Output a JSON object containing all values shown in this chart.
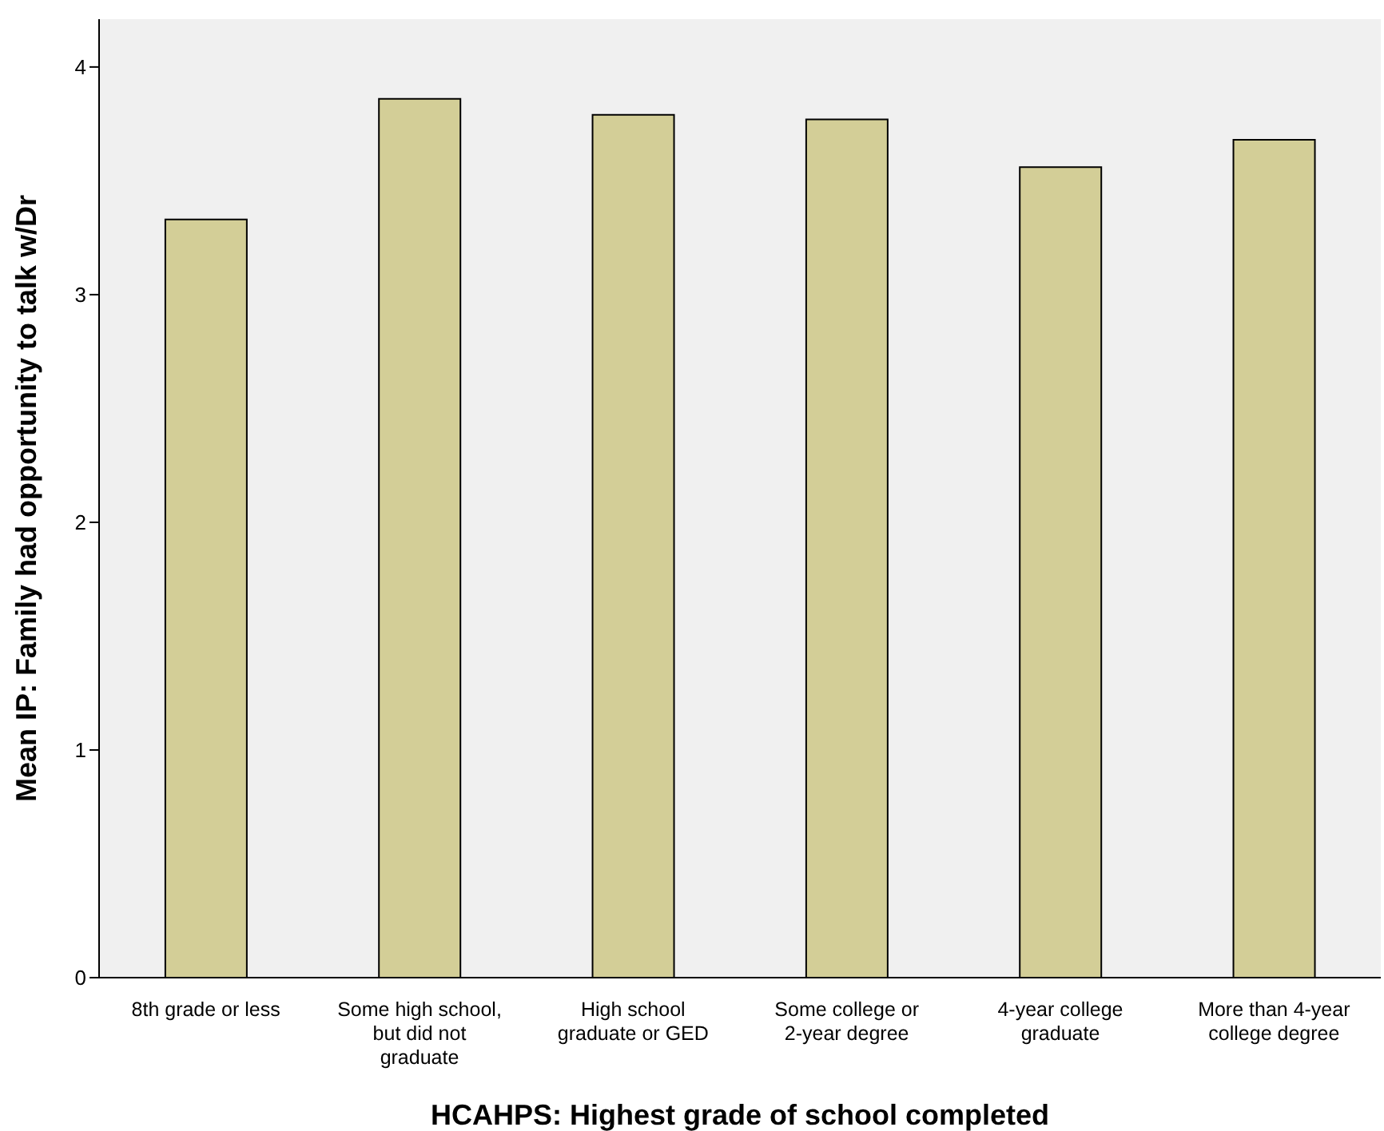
{
  "chart_data": {
    "type": "bar",
    "xlabel": "HCAHPS: Highest grade of school completed",
    "ylabel": "Mean IP: Family had opportunity to talk w/Dr",
    "categories": [
      "8th grade or less",
      "Some high school, but did not graduate",
      "High school graduate or GED",
      "Some college or 2-year degree",
      "4-year college graduate",
      "More than 4-year college degree"
    ],
    "values": [
      3.33,
      3.86,
      3.79,
      3.77,
      3.56,
      3.68
    ],
    "color": "#d3ce97",
    "ylim": [
      0,
      4.21
    ],
    "yticks": [
      0,
      1,
      2,
      3,
      4
    ],
    "grid": false
  }
}
